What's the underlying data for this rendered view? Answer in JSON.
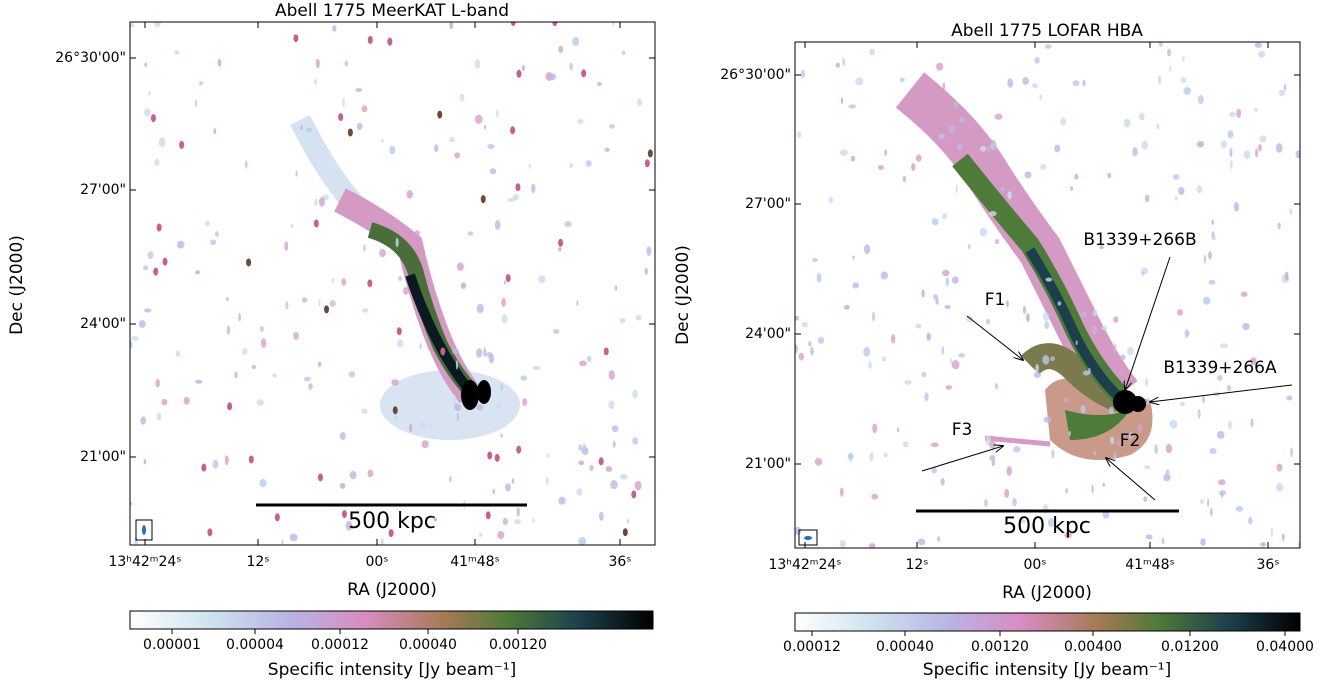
{
  "panels": [
    {
      "title": "Abell 1775 MeerKAT L-band",
      "xlabel": "RA (J2000)",
      "ylabel": "Dec (J2000)",
      "xtick_labels": [
        "13ʰ42ᵐ24ˢ",
        "12ˢ",
        "00ˢ",
        "41ᵐ48ˢ",
        "36ˢ"
      ],
      "ytick_labels": [
        "26°30'00\"",
        "27'00\"",
        "24'00\"",
        "21'00\""
      ],
      "scalebar": "500 kpc",
      "colorbar": {
        "label": "Specific intensity [Jy beam⁻¹]",
        "tick_labels": [
          "0.00001",
          "0.00004",
          "0.00012",
          "0.00040",
          "0.00120"
        ]
      }
    },
    {
      "title": "Abell 1775 LOFAR HBA",
      "xlabel": "RA (J2000)",
      "ylabel": "Dec (J2000)",
      "xtick_labels": [
        "13ʰ42ᵐ24ˢ",
        "12ˢ",
        "00ˢ",
        "41ᵐ48ˢ",
        "36ˢ"
      ],
      "ytick_labels": [
        "26°30'00\"",
        "27'00\"",
        "24'00\"",
        "21'00\""
      ],
      "scalebar": "500 kpc",
      "annotations": [
        "B1339+266B",
        "F1",
        "B1339+266A",
        "F3",
        "F2"
      ],
      "colorbar": {
        "label": "Specific intensity [Jy beam⁻¹]",
        "tick_labels": [
          "0.00012",
          "0.00040",
          "0.00120",
          "0.00400",
          "0.01200",
          "0.04000"
        ]
      }
    }
  ]
}
